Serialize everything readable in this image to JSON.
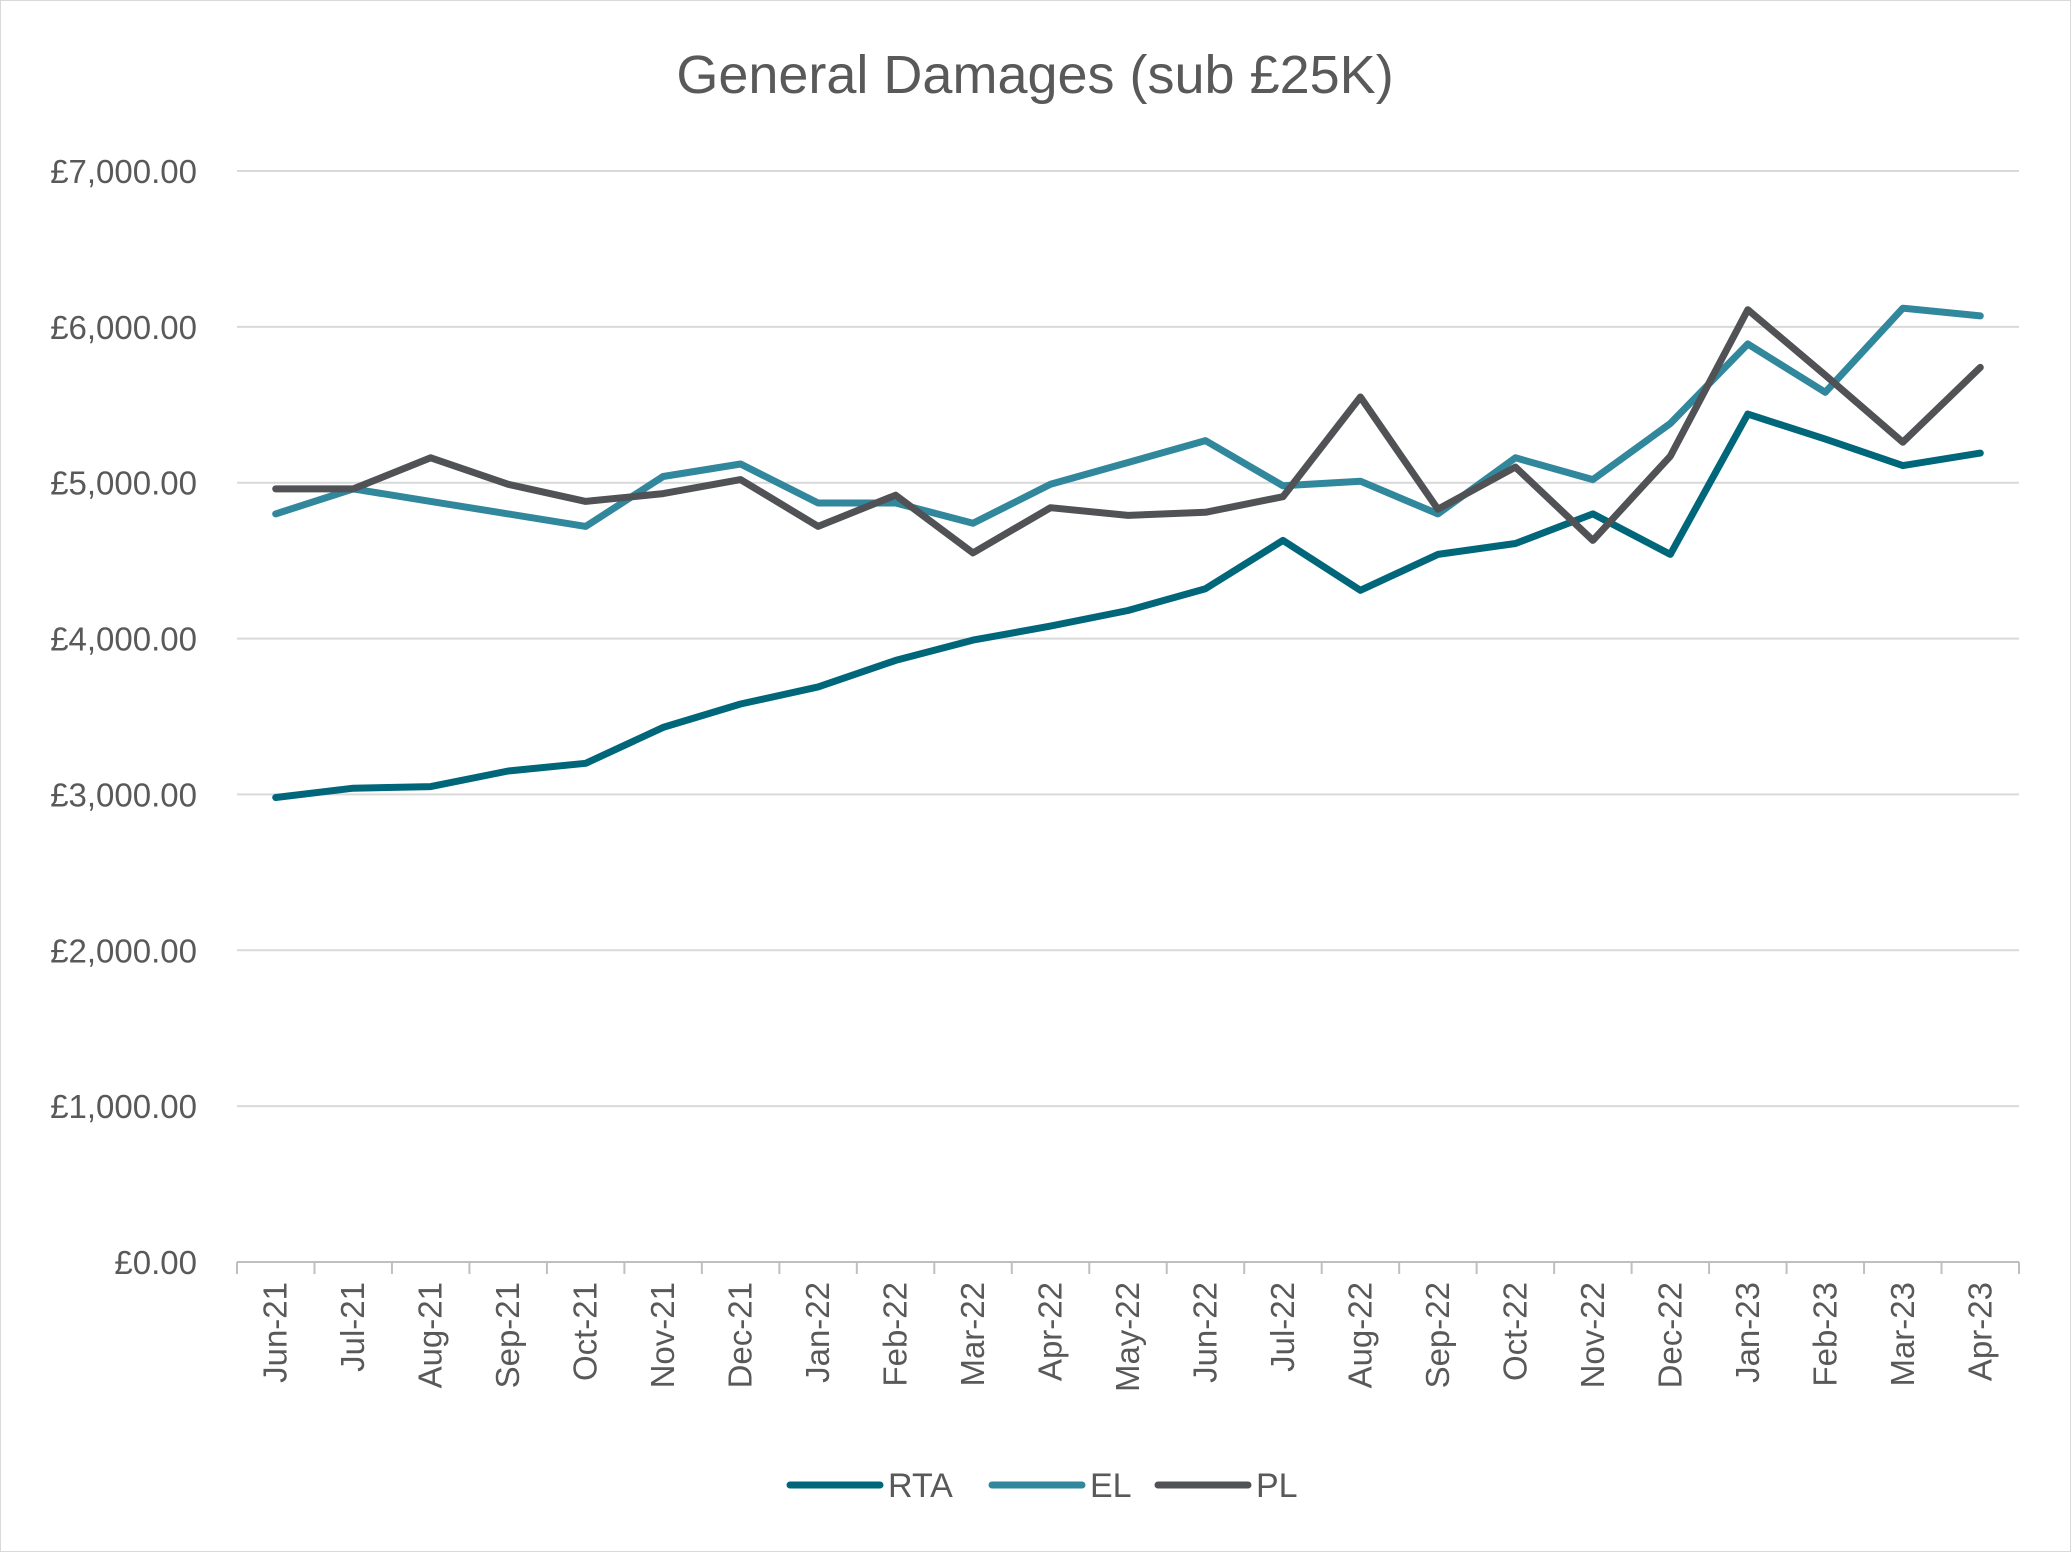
{
  "chart_data": {
    "type": "line",
    "title": "General Damages (sub £25K)",
    "xlabel": "",
    "ylabel": "",
    "categories": [
      "Jun-21",
      "Jul-21",
      "Aug-21",
      "Sep-21",
      "Oct-21",
      "Nov-21",
      "Dec-21",
      "Jan-22",
      "Feb-22",
      "Mar-22",
      "Apr-22",
      "May-22",
      "Jun-22",
      "Jul-22",
      "Aug-22",
      "Sep-22",
      "Oct-22",
      "Nov-22",
      "Dec-22",
      "Jan-23",
      "Feb-23",
      "Mar-23",
      "Apr-23"
    ],
    "y_tick_labels": [
      "£0.00",
      "£1,000.00",
      "£2,000.00",
      "£3,000.00",
      "£4,000.00",
      "£5,000.00",
      "£6,000.00",
      "£7,000.00"
    ],
    "ylim": [
      0,
      7000
    ],
    "grid": true,
    "legend_position": "bottom",
    "series": [
      {
        "name": "RTA",
        "color": "#00667a",
        "values": [
          2980,
          3040,
          3050,
          3150,
          3200,
          3430,
          3580,
          3690,
          3860,
          3990,
          4080,
          4180,
          4320,
          4630,
          4310,
          4540,
          4610,
          4800,
          4540,
          5440,
          5280,
          5110,
          5190
        ]
      },
      {
        "name": "EL",
        "color": "#31879c",
        "values": [
          4800,
          4960,
          4880,
          4800,
          4720,
          5040,
          5120,
          4870,
          4870,
          4740,
          4990,
          5130,
          5270,
          4980,
          5010,
          4800,
          5160,
          5020,
          5380,
          5890,
          5580,
          6120,
          6070
        ]
      },
      {
        "name": "PL",
        "color": "#515255",
        "values": [
          4960,
          4960,
          5160,
          4990,
          4880,
          4930,
          5020,
          4720,
          4920,
          4550,
          4840,
          4790,
          4810,
          4910,
          5550,
          4830,
          5100,
          4630,
          5170,
          6110,
          5690,
          5260,
          5740
        ]
      }
    ]
  },
  "gridline_color": "#d9d9d9",
  "axis_color": "#bfbfbf"
}
